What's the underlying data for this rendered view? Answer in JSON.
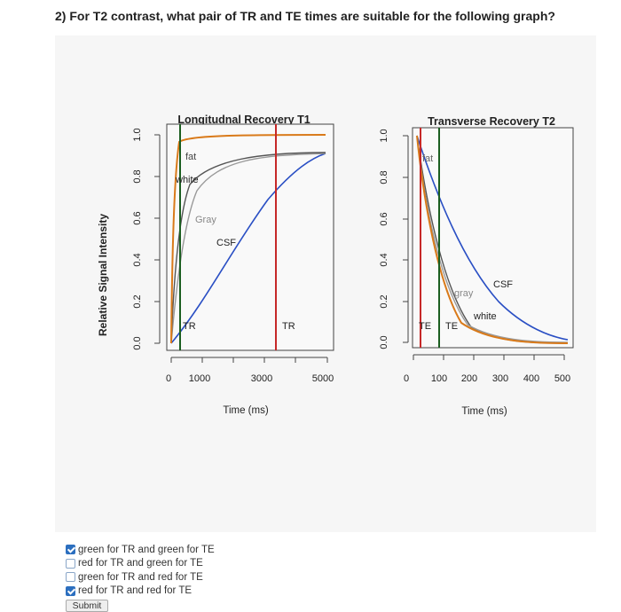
{
  "question": "2) For T2 contrast, what pair of TR and TE times are suitable for the following graph?",
  "figure": {
    "ylabel": "Relative Signal Intensity",
    "left": {
      "title": "Longitudnal Recovery T1",
      "xlabel": "Time (ms)",
      "x_ticks": [
        "0",
        "1000",
        "3000",
        "5000"
      ],
      "y_ticks": [
        "0.0",
        "0.2",
        "0.4",
        "0.6",
        "0.8",
        "1.0"
      ],
      "labels": {
        "fat": "fat",
        "white": "white",
        "gray": "Gray",
        "csf": "CSF",
        "tr_green": "TR",
        "tr_red": "TR"
      }
    },
    "right": {
      "title": "Transverse Recovery T2",
      "xlabel": "Time (ms)",
      "x_ticks": [
        "0",
        "100",
        "200",
        "300",
        "400",
        "500"
      ],
      "y_ticks": [
        "0.0",
        "0.2",
        "0.4",
        "0.6",
        "0.8",
        "1.0"
      ],
      "labels": {
        "fat": "fat",
        "gray": "gray",
        "white": "white",
        "csf": "CSF",
        "te_red": "TE",
        "te_green": "TE"
      }
    },
    "colors": {
      "fat": "#d97a1a",
      "white": "#555555",
      "gray": "#999999",
      "csf": "#2a4fc4",
      "red": "#c62828",
      "green": "#1b5e20"
    }
  },
  "options": [
    {
      "label": "green for TR and green for TE",
      "checked": true
    },
    {
      "label": "red for TR and green for TE",
      "checked": false
    },
    {
      "label": "green for TR and red for TE",
      "checked": false
    },
    {
      "label": "red for TR and red for TE",
      "checked": true
    }
  ],
  "submit_label": "Submit"
}
